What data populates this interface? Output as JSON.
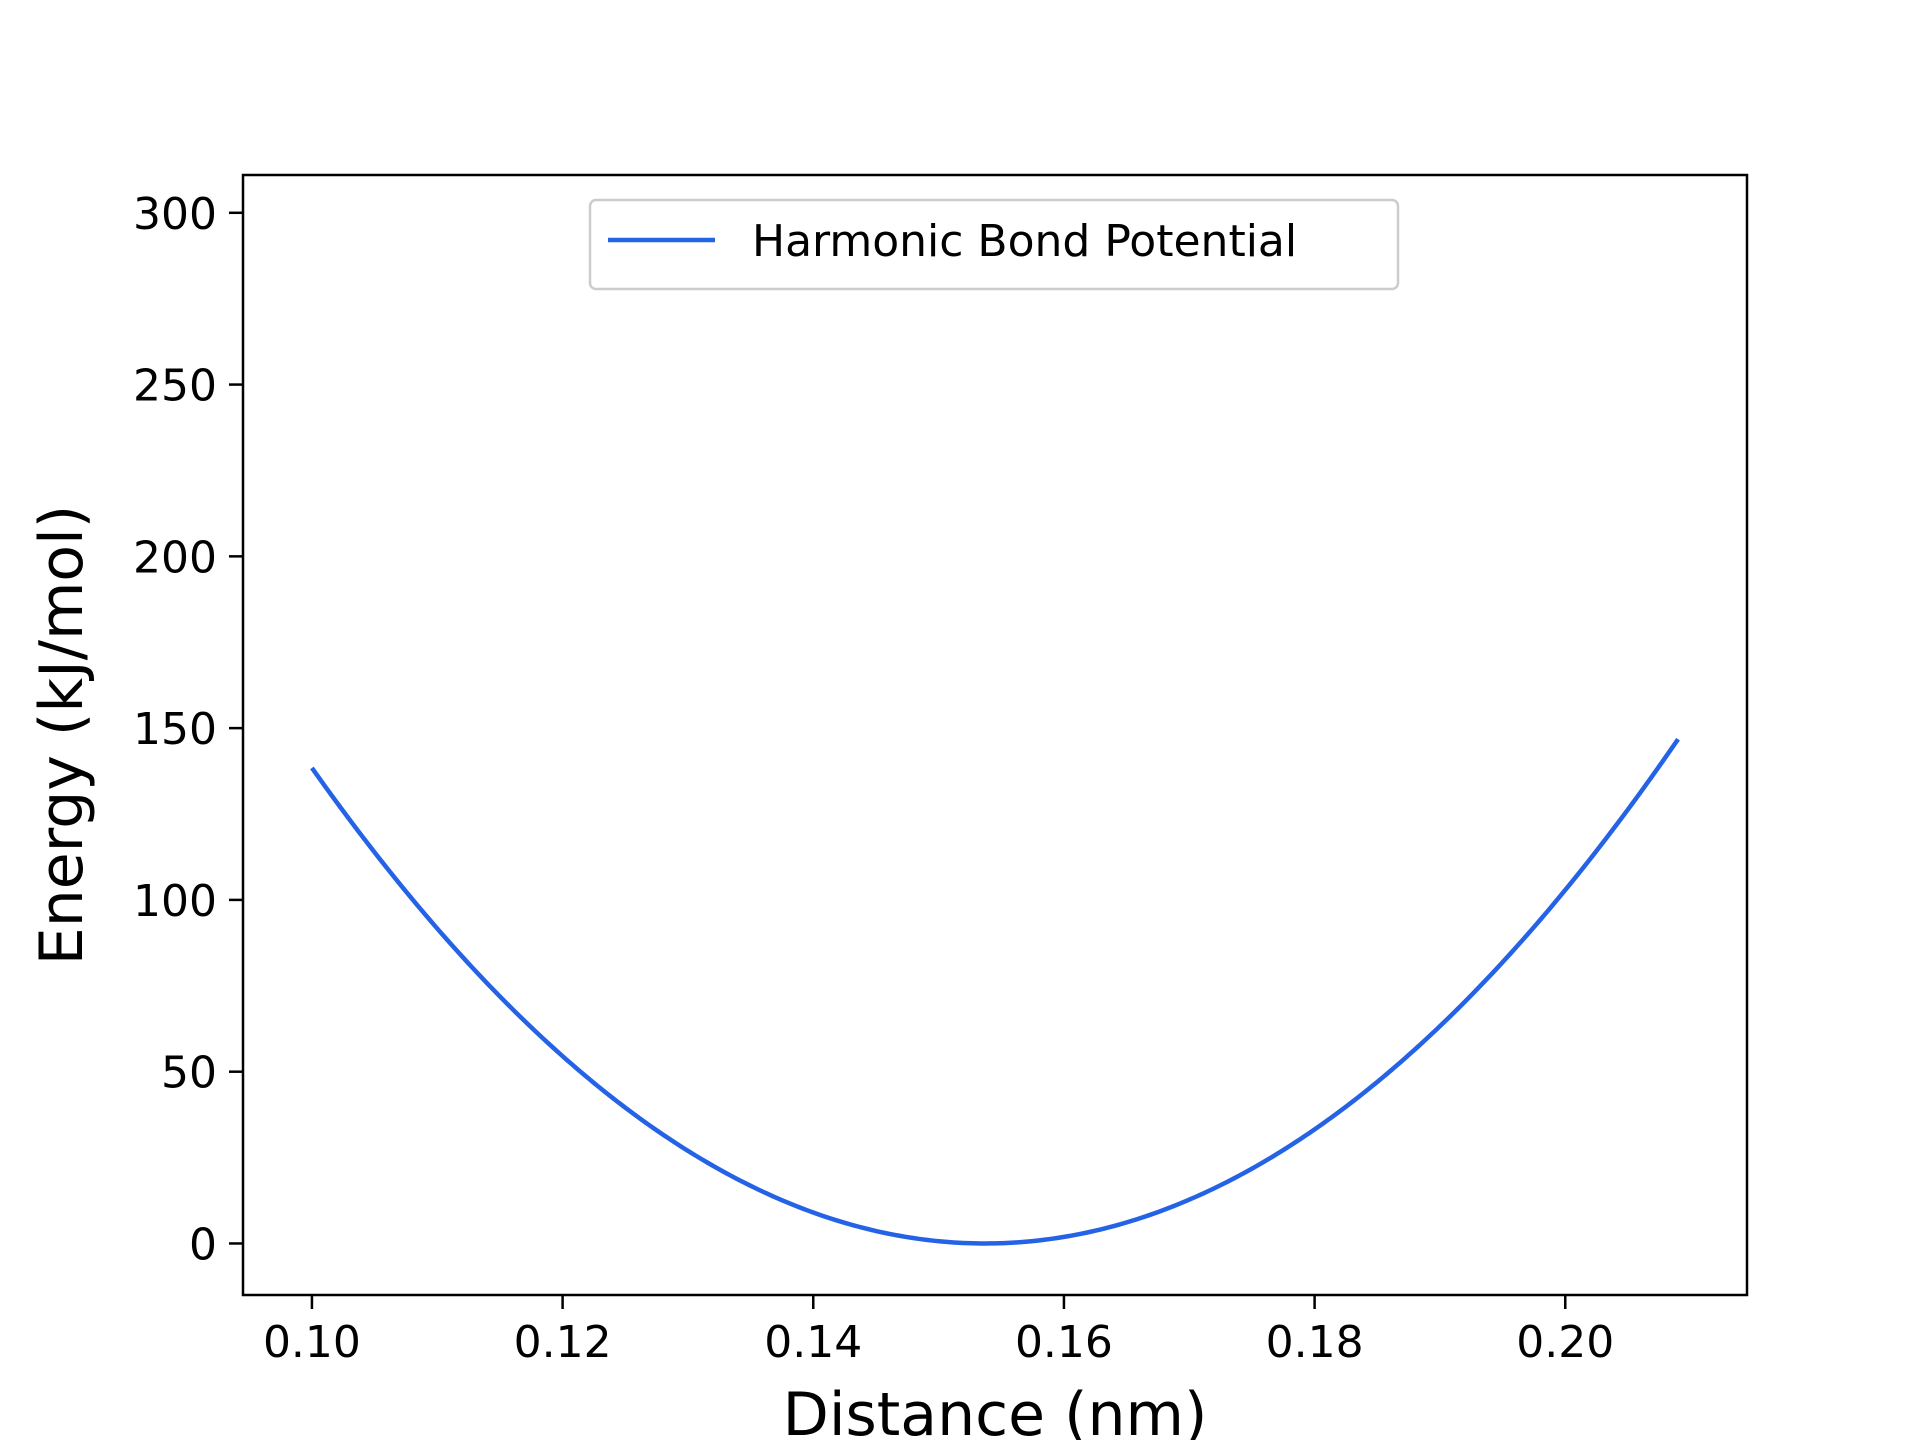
{
  "chart_data": {
    "type": "line",
    "title": "",
    "xlabel": "Distance (nm)",
    "ylabel": "Energy (kJ/mol)",
    "xlim": [
      0.0945,
      0.2145
    ],
    "ylim": [
      -15,
      311
    ],
    "x_ticks": [
      0.1,
      0.12,
      0.14,
      0.16,
      0.18,
      0.2
    ],
    "x_tick_labels": [
      "0.10",
      "0.12",
      "0.14",
      "0.16",
      "0.18",
      "0.20"
    ],
    "y_ticks": [
      0,
      50,
      100,
      150,
      200,
      250,
      300
    ],
    "y_tick_labels": [
      "0",
      "50",
      "100",
      "150",
      "200",
      "250",
      "300"
    ],
    "grid": false,
    "legend": {
      "position": "upper-center"
    },
    "series": [
      {
        "name": "Harmonic Bond Potential",
        "color": "#2563e6",
        "function": "harmonic",
        "k": 96000,
        "r0": 0.1537,
        "x_range": [
          0.1,
          0.209
        ]
      }
    ]
  }
}
